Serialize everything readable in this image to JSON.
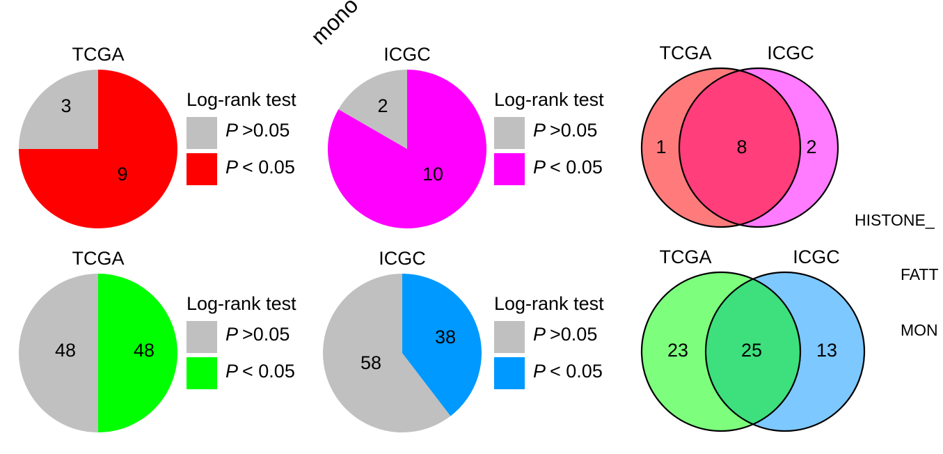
{
  "fragments": {
    "top_rotated": "mono",
    "right_1": "HISTONE_",
    "right_2": "FATT",
    "right_3": "MON"
  },
  "legend": {
    "title": "Log-rank test",
    "p": "P",
    "gt": ">0.05",
    "lt": "< 0.05",
    "gray": "#c0c0c0"
  },
  "chart_data": [
    {
      "type": "pie",
      "title": "TCGA",
      "categories": [
        "P >0.05",
        "P < 0.05"
      ],
      "values": [
        3,
        9
      ],
      "labels": [
        "3",
        "9"
      ],
      "colors": [
        "#c0c0c0",
        "#ff0000"
      ]
    },
    {
      "type": "pie",
      "title": "ICGC",
      "categories": [
        "P >0.05",
        "P < 0.05"
      ],
      "values": [
        2,
        10
      ],
      "labels": [
        "2",
        "10"
      ],
      "colors": [
        "#c0c0c0",
        "#ff00ff"
      ]
    },
    {
      "type": "venn",
      "sets": [
        "TCGA",
        "ICGC"
      ],
      "values": {
        "TCGA_only": 1,
        "both": 8,
        "ICGC_only": 2
      },
      "labels": [
        "1",
        "8",
        "2"
      ],
      "colors": [
        "#ff7b7b",
        "#ff3e7b",
        "#ff7bff"
      ]
    },
    {
      "type": "pie",
      "title": "TCGA",
      "categories": [
        "P >0.05",
        "P < 0.05"
      ],
      "values": [
        48,
        48
      ],
      "labels": [
        "48",
        "48"
      ],
      "colors": [
        "#c0c0c0",
        "#00ff00"
      ]
    },
    {
      "type": "pie",
      "title": "ICGC",
      "categories": [
        "P >0.05",
        "P < 0.05"
      ],
      "values": [
        58,
        38
      ],
      "labels": [
        "58",
        "38"
      ],
      "colors": [
        "#c0c0c0",
        "#0099ff"
      ]
    },
    {
      "type": "venn",
      "sets": [
        "TCGA",
        "ICGC"
      ],
      "values": {
        "TCGA_only": 23,
        "both": 25,
        "ICGC_only": 13
      },
      "labels": [
        "23",
        "25",
        "13"
      ],
      "colors": [
        "#7dff7d",
        "#3de07d",
        "#7dc8ff"
      ]
    }
  ]
}
